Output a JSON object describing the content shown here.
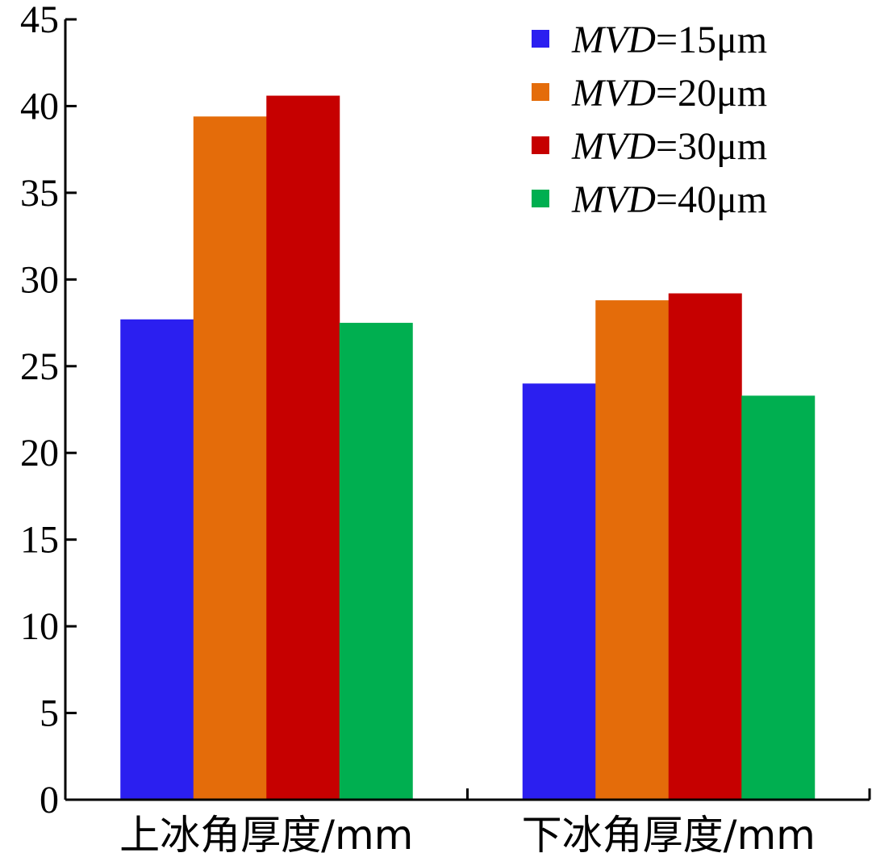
{
  "chart_data": {
    "type": "bar",
    "title": "",
    "xlabel": "",
    "ylabel": "",
    "categories": [
      "上冰角厚度/mm",
      "下冰角厚度/mm"
    ],
    "series": [
      {
        "name": "MVD=15μm",
        "name_italic": "MVD",
        "name_rest": "=15μm",
        "color": "#2b1ff0",
        "values": [
          27.7,
          24.0
        ]
      },
      {
        "name": "MVD=20μm",
        "name_italic": "MVD",
        "name_rest": "=20μm",
        "color": "#e46c0a",
        "values": [
          39.4,
          28.8
        ]
      },
      {
        "name": "MVD=30μm",
        "name_italic": "MVD",
        "name_rest": "=30μm",
        "color": "#c60000",
        "values": [
          40.6,
          29.2
        ]
      },
      {
        "name": "MVD=40μm",
        "name_italic": "MVD",
        "name_rest": "=40μm",
        "color": "#00af50",
        "values": [
          27.5,
          23.3
        ]
      }
    ],
    "ylim": [
      0,
      45
    ],
    "yticks": [
      0,
      5,
      10,
      15,
      20,
      25,
      30,
      35,
      40,
      45
    ],
    "grid": false,
    "legend_position": "top-right"
  }
}
